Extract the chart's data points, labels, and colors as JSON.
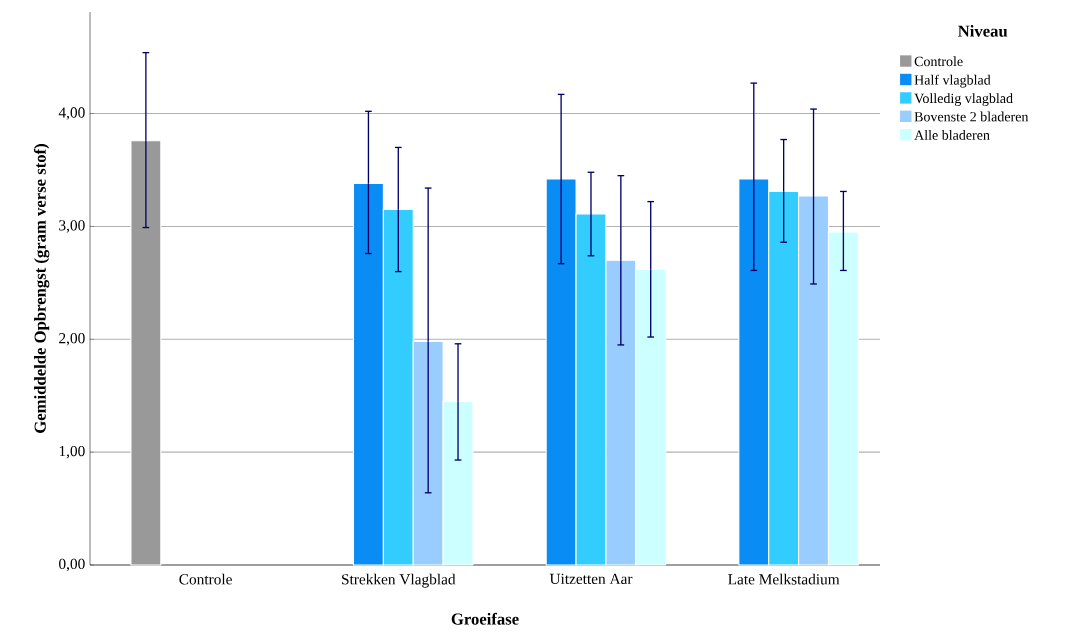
{
  "chart_data": {
    "type": "bar",
    "xlabel": "Groeifase",
    "ylabel": "Gemiddelde Opbrengst (gram verse stof)",
    "legend_title": "Niveau",
    "categories": [
      "Controle",
      "Strekken Vlagblad",
      "Uitzetten Aar",
      "Late Melkstadium"
    ],
    "series": [
      {
        "name": "Controle",
        "color": "#999999",
        "values": [
          3.76,
          null,
          null,
          null
        ],
        "errors": [
          [
            2.99,
            4.54
          ],
          null,
          null,
          null
        ]
      },
      {
        "name": "Half vlagblad",
        "color": "#0a8cf5",
        "values": [
          null,
          3.38,
          3.42,
          3.42
        ],
        "errors": [
          null,
          [
            2.76,
            4.02
          ],
          [
            2.67,
            4.17
          ],
          [
            2.61,
            4.27
          ]
        ]
      },
      {
        "name": "Volledig vlagblad",
        "color": "#33ccff",
        "values": [
          null,
          3.15,
          3.11,
          3.31
        ],
        "errors": [
          null,
          [
            2.6,
            3.7
          ],
          [
            2.74,
            3.48
          ],
          [
            2.86,
            3.77
          ]
        ]
      },
      {
        "name": "Bovenste 2 bladeren",
        "color": "#99ccff",
        "values": [
          null,
          1.98,
          2.7,
          3.27
        ],
        "errors": [
          null,
          [
            0.64,
            3.34
          ],
          [
            1.95,
            3.45
          ],
          [
            2.49,
            4.04
          ]
        ]
      },
      {
        "name": "Alle bladeren",
        "color": "#ccffff",
        "values": [
          null,
          1.45,
          2.62,
          2.95
        ],
        "errors": [
          null,
          [
            0.93,
            1.96
          ],
          [
            2.02,
            3.22
          ],
          [
            2.61,
            3.31
          ]
        ]
      }
    ],
    "ylim": [
      0,
      4.9
    ],
    "yticks": [
      {
        "value": 0,
        "label": "0,00"
      },
      {
        "value": 1,
        "label": "1,00"
      },
      {
        "value": 2,
        "label": "2,00"
      },
      {
        "value": 3,
        "label": "3,00"
      },
      {
        "value": 4,
        "label": "4,00"
      }
    ],
    "grid": "y",
    "legend": "right"
  }
}
